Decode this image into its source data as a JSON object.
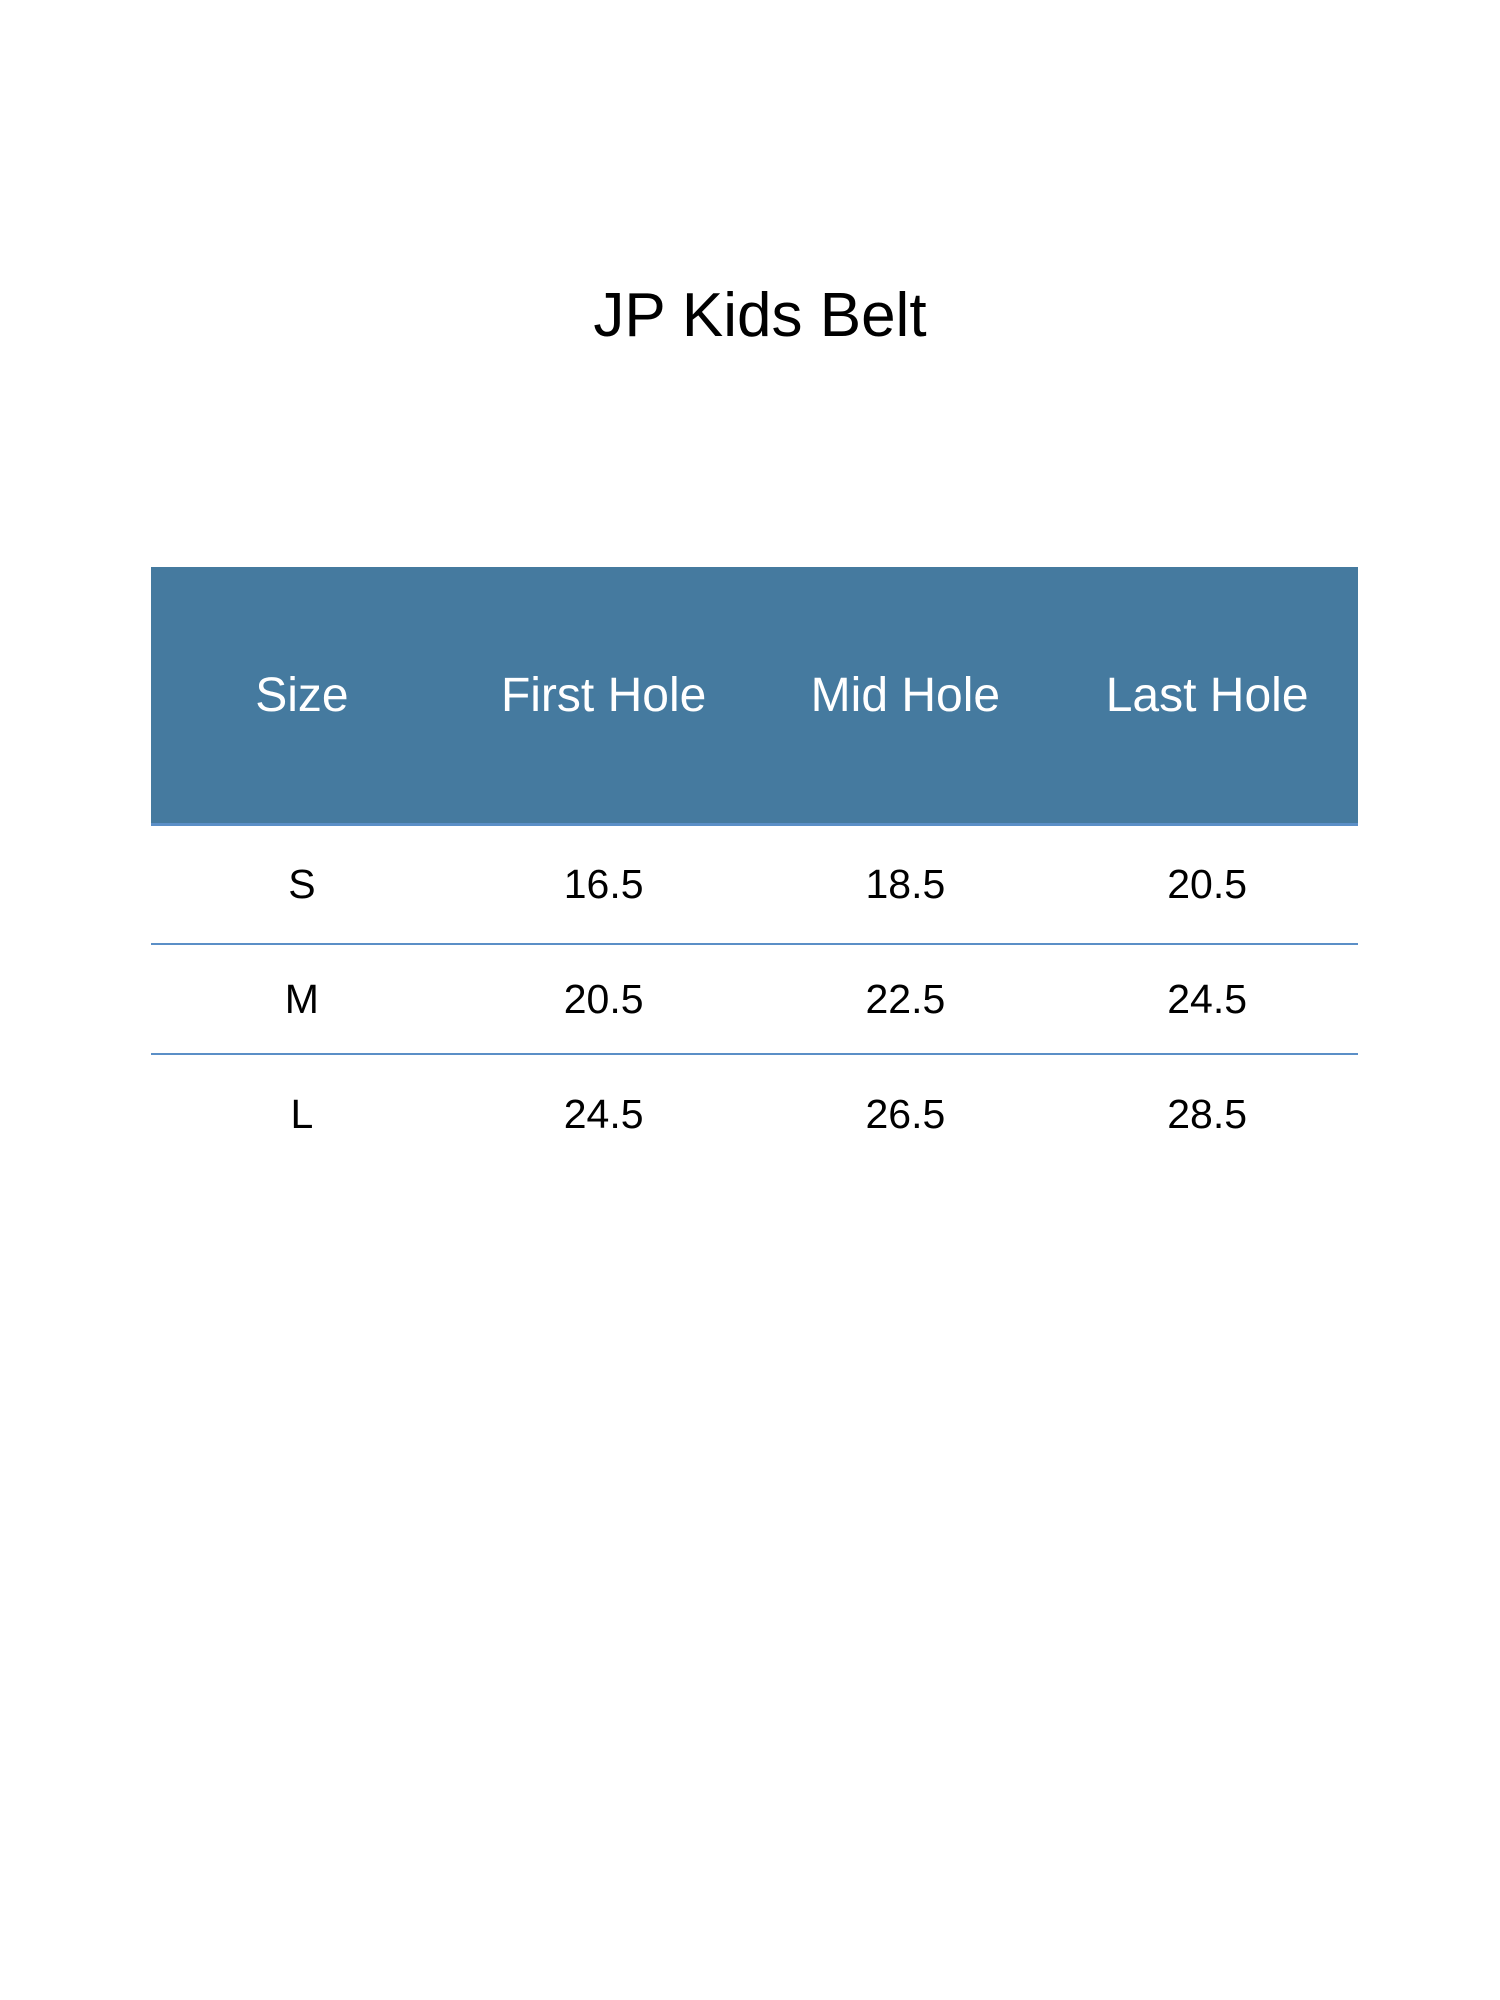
{
  "title": "JP Kids Belt",
  "table": {
    "headers": [
      "Size",
      "First Hole",
      "Mid Hole",
      "Last Hole"
    ],
    "rows": [
      [
        "S",
        "16.5",
        "18.5",
        "20.5"
      ],
      [
        "M",
        "20.5",
        "22.5",
        "24.5"
      ],
      [
        "L",
        "24.5",
        "26.5",
        "28.5"
      ]
    ]
  },
  "colors": {
    "header_bg": "#457a9f",
    "rule": "#5b8fc7"
  }
}
